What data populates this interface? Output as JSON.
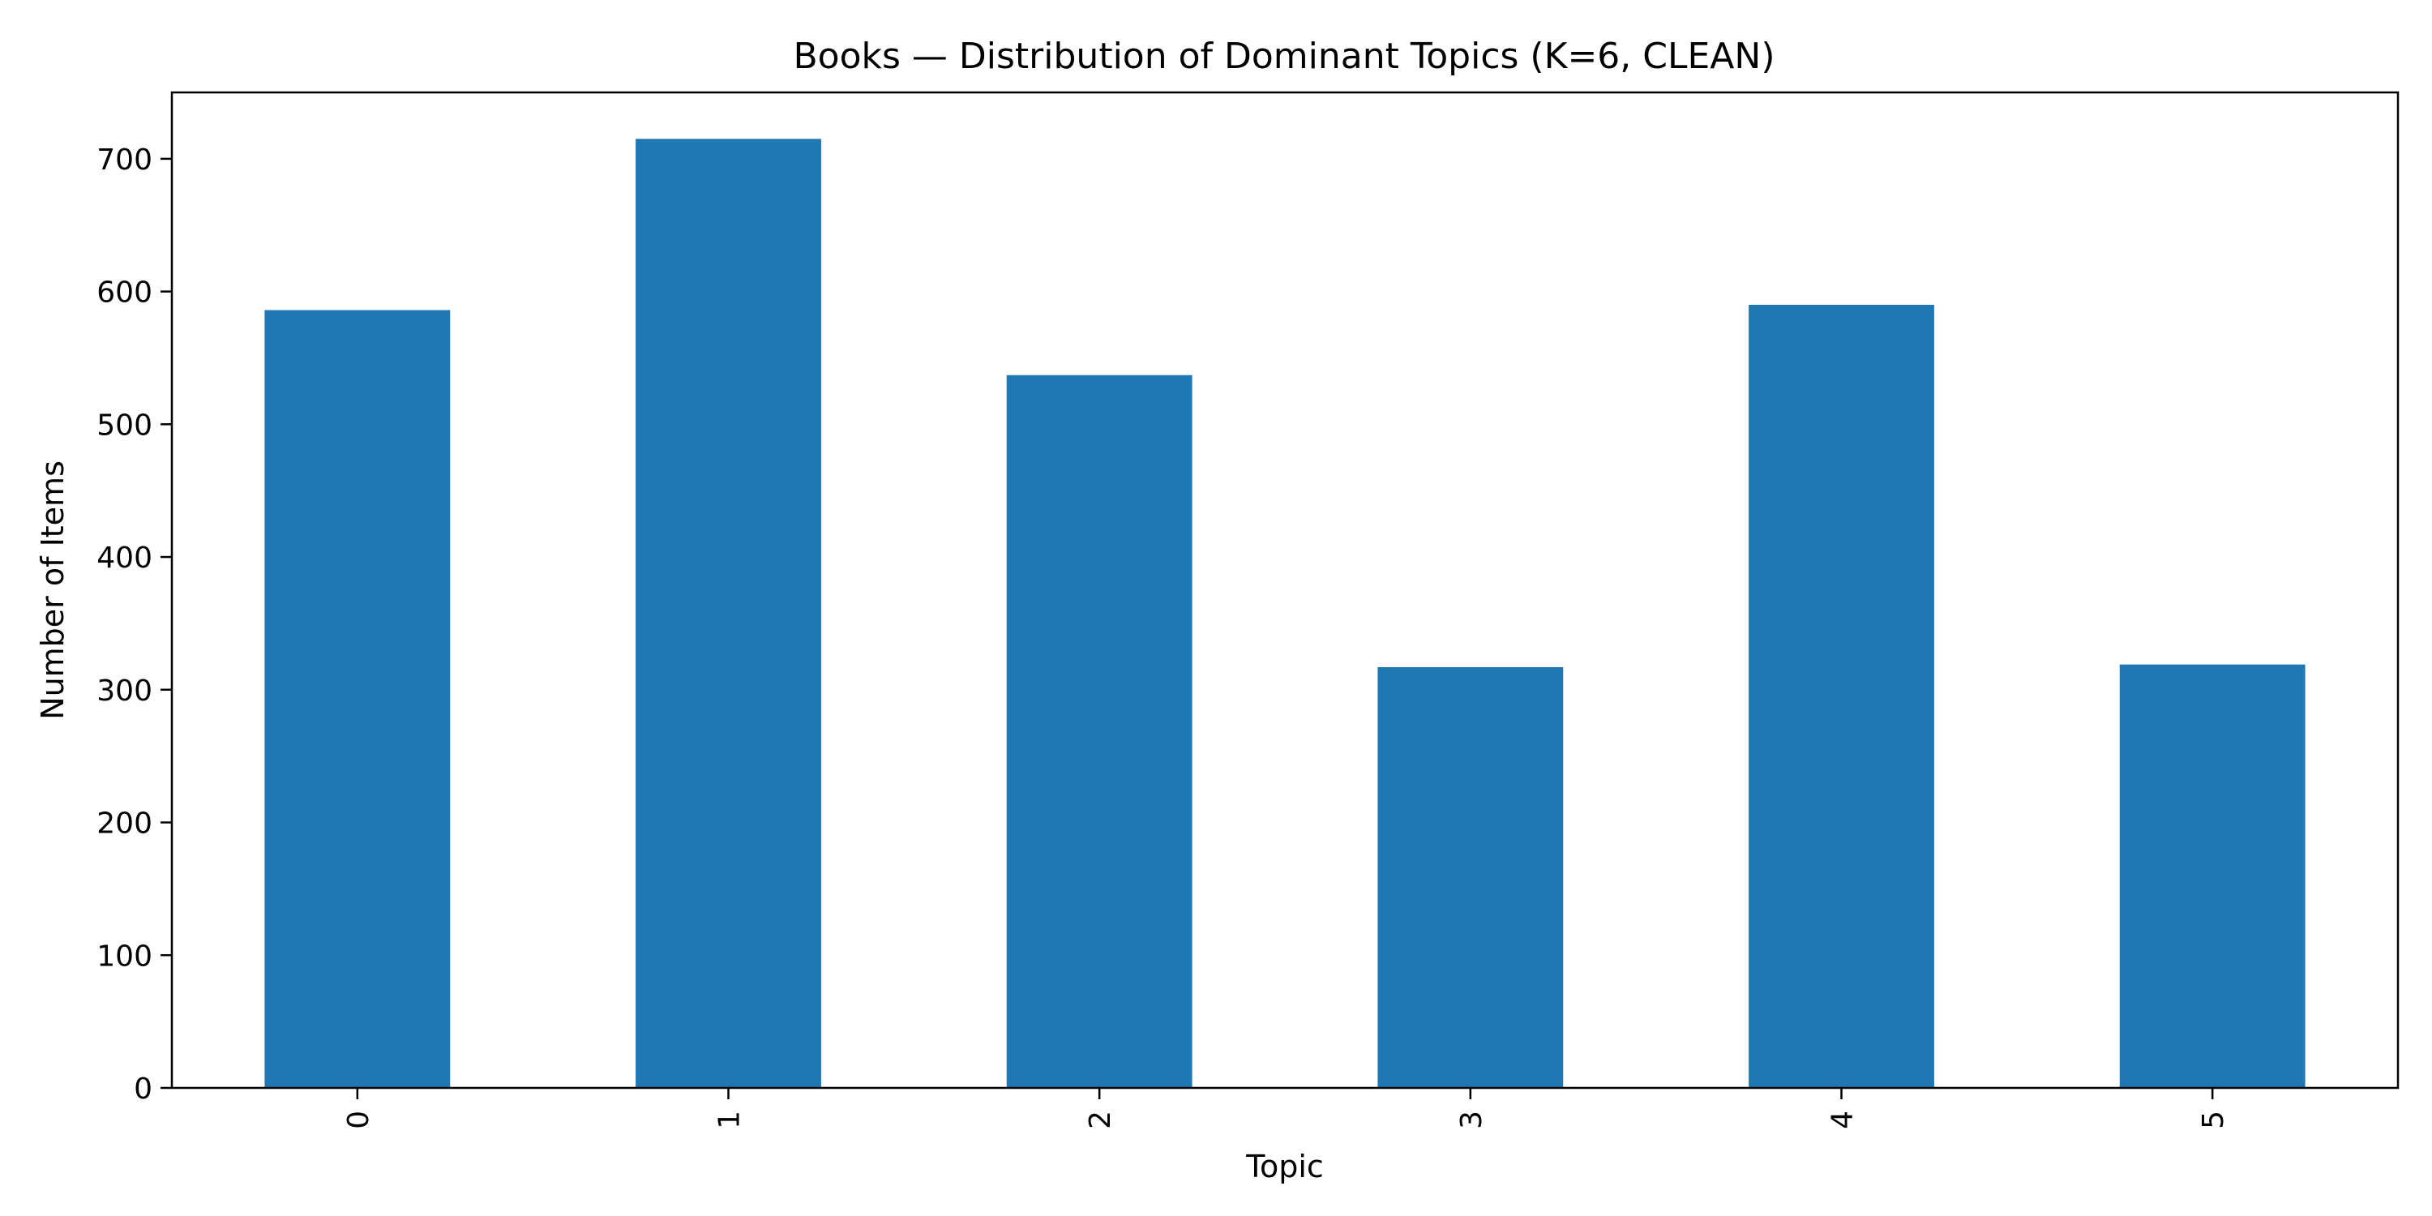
{
  "chart_data": {
    "type": "bar",
    "title": "Books — Distribution of Dominant Topics (K=6, CLEAN)",
    "xlabel": "Topic",
    "ylabel": "Number of Items",
    "categories": [
      "0",
      "1",
      "2",
      "3",
      "4",
      "5"
    ],
    "values": [
      586,
      715,
      537,
      317,
      590,
      319
    ],
    "ylim": [
      0,
      750
    ],
    "yticks": [
      0,
      100,
      200,
      300,
      400,
      500,
      600,
      700
    ],
    "ytick_labels": [
      "0",
      "100",
      "200",
      "300",
      "400",
      "500",
      "600",
      "700"
    ],
    "xtick_rotation": "vertical",
    "grid": false,
    "legend": "none",
    "bar_color": "#1f77b4"
  }
}
